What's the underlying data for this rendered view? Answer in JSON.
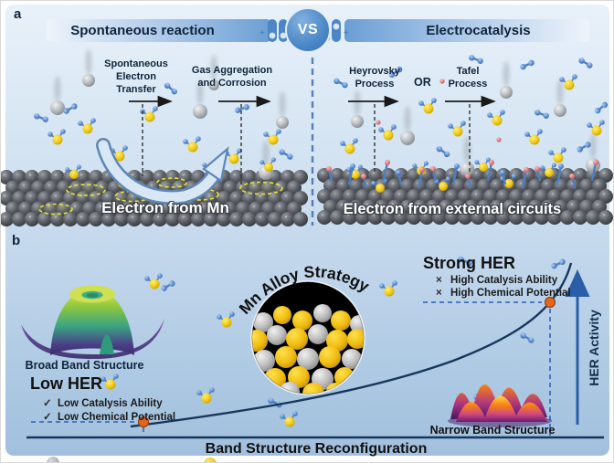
{
  "labels": {
    "panel_a": "a",
    "panel_b": "b"
  },
  "banner": {
    "left_title": "Spontaneous reaction",
    "vs": "VS",
    "right_title": "Electrocatalysis"
  },
  "panel_a": {
    "left": {
      "step_1": "Spontaneous\nElectron\nTransfer",
      "step_2": "Gas Aggregation\nand Corrosion",
      "slab_caption": "Electron from Mn"
    },
    "right": {
      "step_1": "Heyrovsky\nProcess",
      "or": "OR",
      "step_2": "Tafel\nProcess",
      "slab_caption": "Electron from external circuits"
    }
  },
  "panel_b": {
    "strategy_title": "Mn Alloy Strategy",
    "strong_her": {
      "title": "Strong HER",
      "items": [
        {
          "mark": "×",
          "text": "High Catalysis Ability"
        },
        {
          "mark": "×",
          "text": "High Chemical Potential"
        }
      ]
    },
    "low_her": {
      "title": "Low HER",
      "items": [
        {
          "mark": "✓",
          "text": "Low Catalysis Ability"
        },
        {
          "mark": "✓",
          "text": "Low Chemical Potential"
        }
      ]
    },
    "broad_band_label": "Broad Band Structure",
    "narrow_band_label": "Narrow Band Structure",
    "x_axis_label": "Band Structure Reconfiguration",
    "y_axis_label": "HER Activity"
  },
  "colors": {
    "accent_blue": "#4d86c6",
    "curve_navy": "#16365c",
    "marker_orange": "#e2661f",
    "dashed_guide": "#3a6fc0"
  }
}
